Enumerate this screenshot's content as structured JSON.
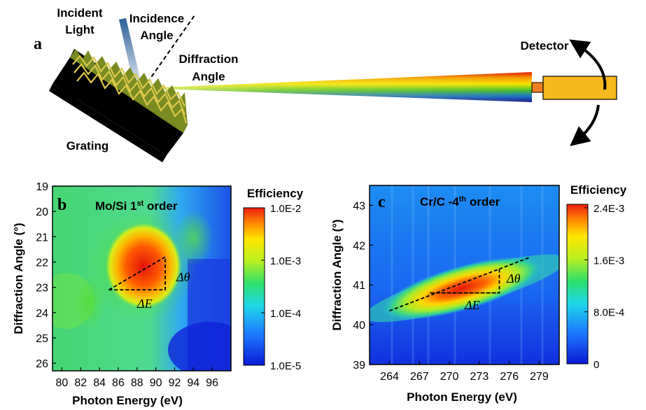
{
  "panel_a": {
    "letter": "a",
    "incident_light": [
      "Incident",
      "Light"
    ],
    "incidence_angle": [
      "Incidence",
      "Angle"
    ],
    "diffraction_angle": [
      "Diffraction",
      "Angle"
    ],
    "detector": "Detector",
    "grating": "Grating"
  },
  "panel_b": {
    "letter": "b",
    "label_main": "Mo/Si 1",
    "label_sup": "st",
    "label_tail": " order",
    "delta_theta": "Δθ",
    "delta_e": "ΔE",
    "colorbar_title": "Efficiency",
    "colorbar_ticks": [
      "1.0E-2",
      "1.0E-3",
      "1.0E-4",
      "1.0E-5"
    ]
  },
  "panel_c": {
    "letter": "c",
    "label_main": "Cr/C -4",
    "label_sup": "th",
    "label_tail": " order",
    "delta_theta": "Δθ",
    "delta_e": "ΔE",
    "colorbar_title": "Efficiency",
    "colorbar_ticks": [
      "2.4E-3",
      "1.6E-3",
      "8.0E-4",
      "0"
    ]
  },
  "chart_data": [
    {
      "type": "heatmap",
      "xlabel": "Photon Energy (eV)",
      "ylabel": "Diffraction Angle (°)",
      "xlim": [
        79,
        98
      ],
      "ylim": [
        26.3,
        19
      ],
      "x_ticks": [
        80,
        82,
        84,
        86,
        88,
        90,
        92,
        94,
        96
      ],
      "y_ticks": [
        19,
        20,
        21,
        22,
        23,
        24,
        25,
        26
      ],
      "colorscale": "log",
      "color_range": [
        1e-05,
        0.01
      ],
      "peak": {
        "x": 88.5,
        "y": 22.3
      },
      "annotation_triangle": [
        [
          85,
          23.1
        ],
        [
          91,
          21.8
        ],
        [
          91,
          23.1
        ]
      ]
    },
    {
      "type": "heatmap",
      "xlabel": "Photon Energy (eV)",
      "ylabel": "Diffraction Angle (°)",
      "xlim": [
        262,
        281
      ],
      "ylim": [
        39,
        43.5
      ],
      "x_ticks": [
        264,
        267,
        270,
        273,
        276,
        279
      ],
      "y_ticks": [
        39,
        40,
        41,
        42,
        43
      ],
      "colorscale": "linear",
      "color_range": [
        0,
        0.0024
      ],
      "peak": {
        "x": 271.5,
        "y": 41.1
      },
      "annotation_triangle": [
        [
          264,
          40.35
        ],
        [
          275,
          40.8
        ],
        [
          275,
          41.4
        ]
      ]
    }
  ]
}
